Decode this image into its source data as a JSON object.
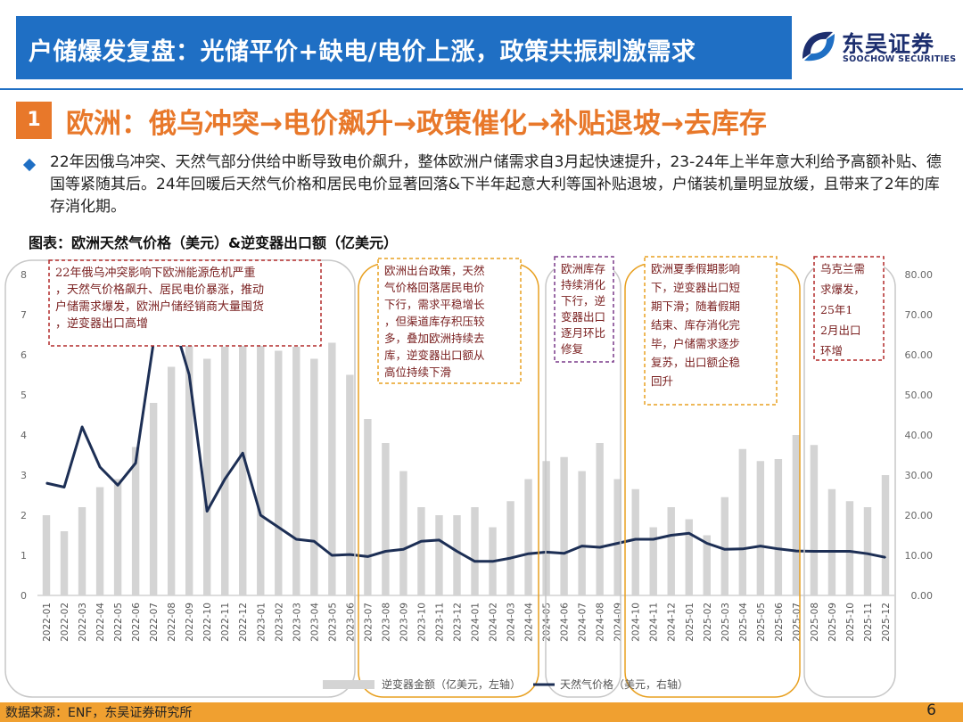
{
  "header": {
    "title": "户储爆发复盘：光储平价+缺电/电价上涨，政策共振刺激需求",
    "logo_cn": "东吴证券",
    "logo_en": "SOOCHOW SECURITIES"
  },
  "section": {
    "number": "1",
    "title": "欧洲：俄乌冲突→电价飙升→政策催化→补贴退坡→去库存"
  },
  "bullet": "22年因俄乌冲突、天然气部分供给中断导致电价飙升，整体欧洲户储需求自3月起快速提升，23-24年上半年意大利给予高额补贴、德国等紧随其后。24年回暖后天然气价格和居民电价显著回落&下半年起意大利等国补贴退坡，户储装机量明显放缓，且带来了2年的库存消化期。",
  "chart_caption": "图表：欧洲天然气价格（美元）&逆变器出口额（亿美元）",
  "chart_data": {
    "type": "bar+line",
    "categories": [
      "2022-01",
      "2022-02",
      "2022-03",
      "2022-04",
      "2022-05",
      "2022-06",
      "2022-07",
      "2022-08",
      "2022-09",
      "2022-10",
      "2022-11",
      "2022-12",
      "2023-01",
      "2023-02",
      "2023-03",
      "2023-04",
      "2023-05",
      "2023-06",
      "2023-07",
      "2023-08",
      "2023-09",
      "2023-10",
      "2023-11",
      "2023-12",
      "2024-01",
      "2024-02",
      "2024-03",
      "2024-04",
      "2024-05",
      "2024-06",
      "2024-07",
      "2024-08",
      "2024-09",
      "2024-10",
      "2024-11",
      "2024-12",
      "2025-01",
      "2025-02",
      "2025-03",
      "2025-04",
      "2025-05",
      "2025-06",
      "2025-07",
      "2025-08",
      "2025-09",
      "2025-10",
      "2025-11",
      "2025-12"
    ],
    "left_axis": {
      "min": 0,
      "max": 8,
      "ticks": [
        "0",
        "1",
        "2",
        "3",
        "4",
        "5",
        "6",
        "7",
        "8"
      ]
    },
    "right_axis": {
      "min": 0,
      "max": 80,
      "ticks": [
        "0.00",
        "10.00",
        "20.00",
        "30.00",
        "40.00",
        "50.00",
        "60.00",
        "70.00",
        "80.00"
      ]
    },
    "series": [
      {
        "name": "逆变器金额（亿美元，左轴）",
        "type": "bar",
        "axis": "left",
        "color": "#d4d4d4",
        "values": [
          2.0,
          1.6,
          2.2,
          2.7,
          2.9,
          3.7,
          4.8,
          5.7,
          6.5,
          5.9,
          6.2,
          6.4,
          6.3,
          6.1,
          6.2,
          5.9,
          6.3,
          5.5,
          4.4,
          3.8,
          3.1,
          2.2,
          2.0,
          2.0,
          2.2,
          1.7,
          2.35,
          2.9,
          3.35,
          3.45,
          3.1,
          3.8,
          2.9,
          2.65,
          1.7,
          2.2,
          1.9,
          1.5,
          2.45,
          3.65,
          3.35,
          3.4,
          4.0,
          3.75,
          2.65,
          2.35,
          2.2,
          3.0
        ]
      },
      {
        "name": "天然气价格（美元，右轴）",
        "type": "line",
        "axis": "right",
        "color": "#1d2f55",
        "values": [
          28,
          27,
          42,
          32,
          27.5,
          33,
          63,
          70,
          55,
          21,
          29,
          35.5,
          20,
          17,
          14,
          13.5,
          10,
          10.2,
          9.7,
          11,
          11.5,
          13.5,
          13.8,
          11,
          8.5,
          8.5,
          9.3,
          10.4,
          10.8,
          10.5,
          12.3,
          12,
          13,
          14,
          14,
          15,
          15.5,
          13,
          11.5,
          11.6,
          12.3,
          11.6,
          11.1,
          11,
          11,
          11,
          10.4,
          9.5
        ]
      }
    ],
    "annotations": [
      {
        "text": "22年俄乌冲突影响下欧洲能源危机严重，天然气价格飙升、居民电价暴涨，推动户储需求爆发，欧洲户储经销商大量囤货，逆变器出口高增",
        "color": "#b22a2a"
      },
      {
        "text": "欧洲出台政策，天然气价格回落居民电价下行，需求平稳增长，但渠道库存积压较多，叠加欧洲持续去库，逆变器出口额从高位持续下滑",
        "color": "#e8a020"
      },
      {
        "text": "欧洲库存持续消化下行，逆变器出口逐月环比修复",
        "color": "#7a3a8a"
      },
      {
        "text": "欧洲夏季假期影响下，逆变器出口短期下滑；随着假期结束、库存消化完毕，户储需求逐步复苏，出口额企稳回升",
        "color": "#e8a020"
      },
      {
        "text": "乌克兰需求爆发，25年12月出口环增",
        "color": "#b22a2a"
      }
    ],
    "legend": [
      "逆变器金额（亿美元，左轴）",
      "天然气价格（美元，右轴）"
    ],
    "legend_position": "bottom"
  },
  "footer": {
    "source": "数据来源：ENF，东吴证券研究所",
    "page": "6"
  }
}
